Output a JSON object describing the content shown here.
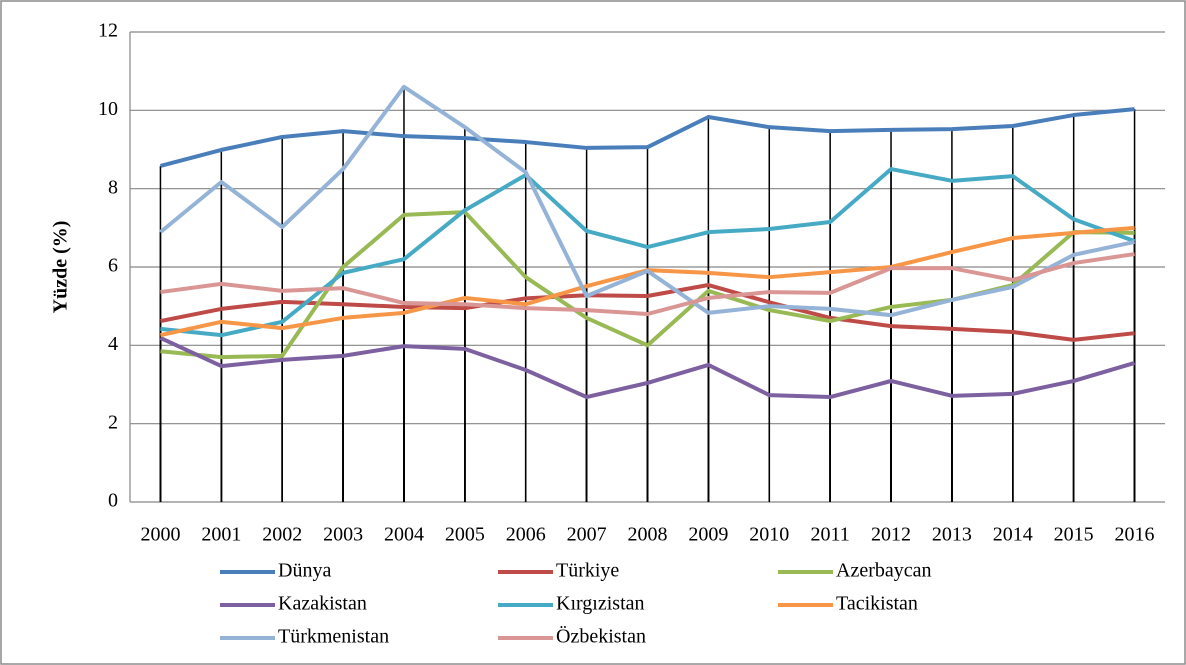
{
  "chart_data": {
    "type": "line",
    "ylabel": "Yüzde (%)",
    "categories": [
      "2000",
      "2001",
      "2002",
      "2003",
      "2004",
      "2005",
      "2006",
      "2007",
      "2008",
      "2009",
      "2010",
      "2011",
      "2012",
      "2013",
      "2014",
      "2015",
      "2016"
    ],
    "ylim": [
      0,
      12
    ],
    "yticks": [
      0,
      2,
      4,
      6,
      8,
      10,
      12
    ],
    "grid": true,
    "drop_lines": true,
    "series": [
      {
        "name": "Dünya",
        "color": "#4a7ebb",
        "values": [
          8.58,
          8.99,
          9.32,
          9.47,
          9.34,
          9.29,
          9.19,
          9.04,
          9.06,
          9.83,
          9.57,
          9.47,
          9.5,
          9.52,
          9.6,
          9.88,
          10.03
        ]
      },
      {
        "name": "Türkiye",
        "color": "#be4b48",
        "values": [
          4.62,
          4.93,
          5.11,
          5.05,
          4.98,
          4.95,
          5.2,
          5.28,
          5.26,
          5.54,
          5.1,
          4.7,
          4.49,
          4.42,
          4.34,
          4.14,
          4.31
        ]
      },
      {
        "name": "Azerbaycan",
        "color": "#98b954",
        "values": [
          3.85,
          3.7,
          3.73,
          6.0,
          7.33,
          7.4,
          5.74,
          4.7,
          4.0,
          5.39,
          4.9,
          4.62,
          4.98,
          5.16,
          5.54,
          6.89,
          6.87
        ]
      },
      {
        "name": "Kazakistan",
        "color": "#7d60a0",
        "values": [
          4.19,
          3.47,
          3.63,
          3.73,
          3.98,
          3.91,
          3.37,
          2.68,
          3.04,
          3.5,
          2.73,
          2.68,
          3.09,
          2.71,
          2.76,
          3.09,
          3.55
        ]
      },
      {
        "name": "Kırgızistan",
        "color": "#46aac5",
        "values": [
          4.42,
          4.26,
          4.6,
          5.85,
          6.2,
          7.45,
          8.35,
          6.92,
          6.51,
          6.89,
          6.97,
          7.15,
          8.5,
          8.2,
          8.32,
          7.22,
          6.66
        ]
      },
      {
        "name": "Tacikistan",
        "color": "#f79646",
        "values": [
          4.26,
          4.6,
          4.44,
          4.7,
          4.83,
          5.21,
          5.05,
          5.51,
          5.92,
          5.85,
          5.74,
          5.87,
          6.0,
          6.38,
          6.74,
          6.87,
          7.0
        ]
      },
      {
        "name": "Türkmenistan",
        "color": "#95b3d7",
        "values": [
          6.89,
          8.17,
          7.02,
          8.5,
          10.6,
          9.57,
          8.42,
          5.26,
          5.9,
          4.83,
          5.0,
          4.93,
          4.77,
          5.16,
          5.49,
          6.31,
          6.64
        ]
      },
      {
        "name": "Özbekistan",
        "color": "#d99694",
        "values": [
          5.36,
          5.57,
          5.39,
          5.46,
          5.08,
          5.05,
          4.95,
          4.9,
          4.8,
          5.21,
          5.36,
          5.34,
          5.97,
          5.97,
          5.67,
          6.1,
          6.33
        ]
      }
    ]
  }
}
